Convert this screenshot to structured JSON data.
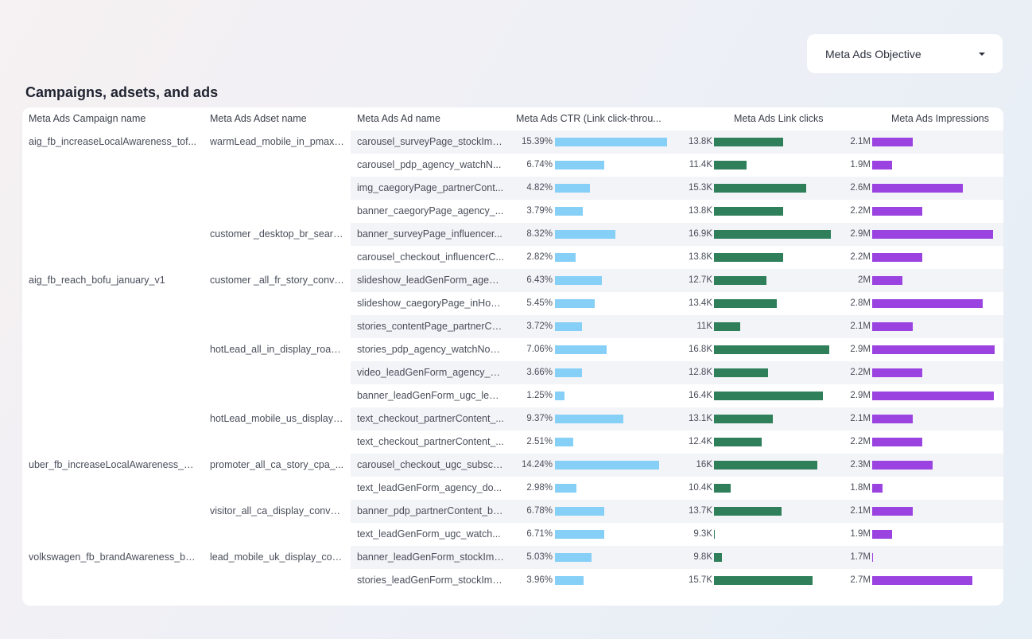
{
  "filter": {
    "label": "Meta Ads Objective"
  },
  "section_title": "Campaigns, adsets, and ads",
  "columns": {
    "campaign": "Meta Ads Campaign name",
    "adset": "Meta Ads Adset name",
    "ad": "Meta Ads Ad name",
    "ctr": "Meta Ads CTR (Link click-throu...",
    "clicks": "Meta Ads Link clicks",
    "impressions": "Meta Ads Impressions"
  },
  "colors": {
    "ctr_bar": "#86cff7",
    "clicks_bar": "#2f7f5b",
    "impressions_bar": "#9a43e0",
    "row_shade": "#f3f4f8"
  },
  "rows": [
    {
      "campaign": "aig_fb_increaseLocalAwareness_tof...",
      "adset": "warmLead_mobile_in_pmax_...",
      "ad": "carousel_surveyPage_stockIma...",
      "ctr": "15.39%",
      "ctr_v": 15.39,
      "clicks": "13.8K",
      "clicks_v": 13.8,
      "impressions": "2.1M",
      "imp_v": 2.1
    },
    {
      "campaign": "",
      "adset": "",
      "ad": "carousel_pdp_agency_watchN...",
      "ctr": "6.74%",
      "ctr_v": 6.74,
      "clicks": "11.4K",
      "clicks_v": 11.4,
      "impressions": "1.9M",
      "imp_v": 1.9
    },
    {
      "campaign": "",
      "adset": "",
      "ad": "img_caegoryPage_partnerCont...",
      "ctr": "4.82%",
      "ctr_v": 4.82,
      "clicks": "15.3K",
      "clicks_v": 15.3,
      "impressions": "2.6M",
      "imp_v": 2.6
    },
    {
      "campaign": "",
      "adset": "",
      "ad": "banner_caegoryPage_agency_...",
      "ctr": "3.79%",
      "ctr_v": 3.79,
      "clicks": "13.8K",
      "clicks_v": 13.8,
      "impressions": "2.2M",
      "imp_v": 2.2
    },
    {
      "campaign": "",
      "adset": "customer _desktop_br_searc...",
      "ad": "banner_surveyPage_influencer...",
      "ctr": "8.32%",
      "ctr_v": 8.32,
      "clicks": "16.9K",
      "clicks_v": 16.9,
      "impressions": "2.9M",
      "imp_v": 2.9
    },
    {
      "campaign": "",
      "adset": "",
      "ad": "carousel_checkout_influencerC...",
      "ctr": "2.82%",
      "ctr_v": 2.82,
      "clicks": "13.8K",
      "clicks_v": 13.8,
      "impressions": "2.2M",
      "imp_v": 2.2
    },
    {
      "campaign": "aig_fb_reach_bofu_january_v1",
      "adset": "customer _all_fr_story_conve...",
      "ad": "slideshow_leadGenForm_agenc...",
      "ctr": "6.43%",
      "ctr_v": 6.43,
      "clicks": "12.7K",
      "clicks_v": 12.7,
      "impressions": "2M",
      "imp_v": 2.0
    },
    {
      "campaign": "",
      "adset": "",
      "ad": "slideshow_caegoryPage_inHou...",
      "ctr": "5.45%",
      "ctr_v": 5.45,
      "clicks": "13.4K",
      "clicks_v": 13.4,
      "impressions": "2.8M",
      "imp_v": 2.8
    },
    {
      "campaign": "",
      "adset": "",
      "ad": "stories_contentPage_partnerCo...",
      "ctr": "3.72%",
      "ctr_v": 3.72,
      "clicks": "11K",
      "clicks_v": 11.0,
      "impressions": "2.1M",
      "imp_v": 2.1
    },
    {
      "campaign": "",
      "adset": "hotLead_all_in_display_roas_...",
      "ad": "stories_pdp_agency_watchNow...",
      "ctr": "7.06%",
      "ctr_v": 7.06,
      "clicks": "16.8K",
      "clicks_v": 16.8,
      "impressions": "2.9M",
      "imp_v": 2.92
    },
    {
      "campaign": "",
      "adset": "",
      "ad": "video_leadGenForm_agency_si...",
      "ctr": "3.66%",
      "ctr_v": 3.66,
      "clicks": "12.8K",
      "clicks_v": 12.8,
      "impressions": "2.2M",
      "imp_v": 2.2
    },
    {
      "campaign": "",
      "adset": "",
      "ad": "banner_leadGenForm_ugc_lear...",
      "ctr": "1.25%",
      "ctr_v": 1.25,
      "clicks": "16.4K",
      "clicks_v": 16.4,
      "impressions": "2.9M",
      "imp_v": 2.91
    },
    {
      "campaign": "",
      "adset": "hotLead_mobile_us_display_...",
      "ad": "text_checkout_partnerContent_...",
      "ctr": "9.37%",
      "ctr_v": 9.37,
      "clicks": "13.1K",
      "clicks_v": 13.1,
      "impressions": "2.1M",
      "imp_v": 2.1
    },
    {
      "campaign": "",
      "adset": "",
      "ad": "text_checkout_partnerContent_...",
      "ctr": "2.51%",
      "ctr_v": 2.51,
      "clicks": "12.4K",
      "clicks_v": 12.4,
      "impressions": "2.2M",
      "imp_v": 2.2
    },
    {
      "campaign": "uber_fb_increaseLocalAwareness_m...",
      "adset": "promoter_all_ca_story_cpa_...",
      "ad": "carousel_checkout_ugc_subscri...",
      "ctr": "14.24%",
      "ctr_v": 14.24,
      "clicks": "16K",
      "clicks_v": 16.0,
      "impressions": "2.3M",
      "imp_v": 2.3
    },
    {
      "campaign": "",
      "adset": "",
      "ad": "text_leadGenForm_agency_do...",
      "ctr": "2.98%",
      "ctr_v": 2.98,
      "clicks": "10.4K",
      "clicks_v": 10.4,
      "impressions": "1.8M",
      "imp_v": 1.8
    },
    {
      "campaign": "",
      "adset": "visitor_all_ca_display_conver...",
      "ad": "banner_pdp_partnerContent_bu...",
      "ctr": "6.78%",
      "ctr_v": 6.78,
      "clicks": "13.7K",
      "clicks_v": 13.7,
      "impressions": "2.1M",
      "imp_v": 2.1
    },
    {
      "campaign": "",
      "adset": "",
      "ad": "text_leadGenForm_ugc_watch...",
      "ctr": "6.71%",
      "ctr_v": 6.71,
      "clicks": "9.3K",
      "clicks_v": 9.3,
      "impressions": "1.9M",
      "imp_v": 1.9
    },
    {
      "campaign": "volkswagen_fb_brandAwareness_bof...",
      "adset": "lead_mobile_uk_display_con...",
      "ad": "banner_leadGenForm_stockIma...",
      "ctr": "5.03%",
      "ctr_v": 5.03,
      "clicks": "9.8K",
      "clicks_v": 9.8,
      "impressions": "1.7M",
      "imp_v": 1.7
    },
    {
      "campaign": "",
      "adset": "",
      "ad": "stories_leadGenForm_stockIma...",
      "ctr": "3.96%",
      "ctr_v": 3.96,
      "clicks": "15.7K",
      "clicks_v": 15.7,
      "impressions": "2.7M",
      "imp_v": 2.7
    }
  ]
}
